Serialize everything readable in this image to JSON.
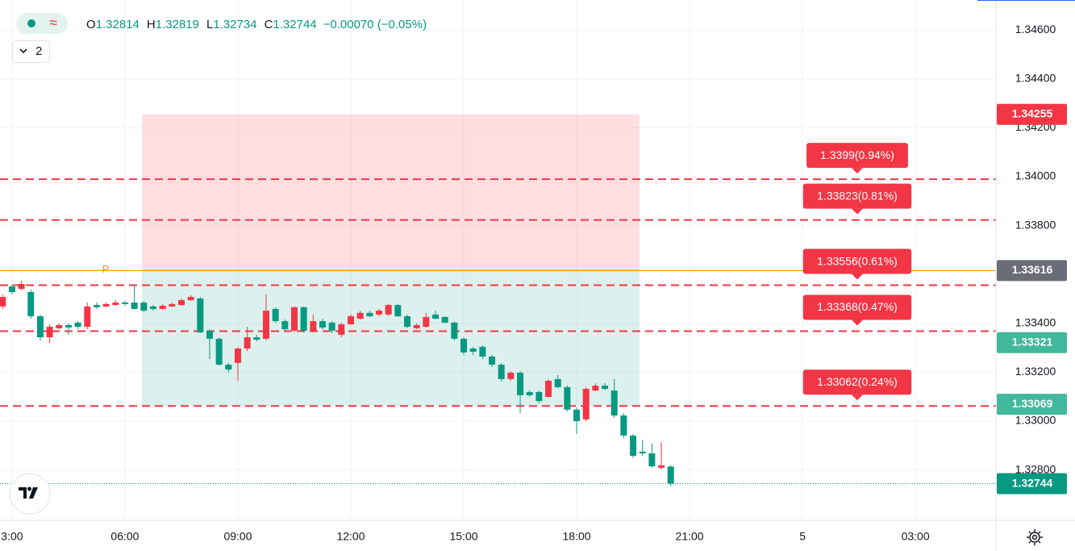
{
  "header": {
    "labels": [
      "O",
      "H",
      "L",
      "C"
    ],
    "change": "−0.00070 (−0.05%)",
    "indicators_count": 2
  },
  "chart_data": {
    "type": "candlestick",
    "up_color": "#f23645",
    "down_color": "#089981",
    "xlim": [
      2.68,
      29.14
    ],
    "ylim": [
      1.32594,
      1.34723
    ],
    "xticks": [
      {
        "value": 3,
        "label": "3:00"
      },
      {
        "value": 6,
        "label": "06:00"
      },
      {
        "value": 9,
        "label": "09:00"
      },
      {
        "value": 12,
        "label": "12:00"
      },
      {
        "value": 15,
        "label": "15:00"
      },
      {
        "value": 18,
        "label": "18:00"
      },
      {
        "value": 21,
        "label": "21:00"
      },
      {
        "value": 24,
        "label": "5"
      },
      {
        "value": 27,
        "label": "03:00"
      }
    ],
    "yticks": [
      {
        "value": 1.346,
        "label": "1.34600"
      },
      {
        "value": 1.344,
        "label": "1.34400"
      },
      {
        "value": 1.342,
        "label": "1.34200"
      },
      {
        "value": 1.34,
        "label": "1.34000"
      },
      {
        "value": 1.338,
        "label": "1.33800"
      },
      {
        "value": 1.334,
        "label": "1.33400"
      },
      {
        "value": 1.332,
        "label": "1.33200"
      },
      {
        "value": 1.33,
        "label": "1.33000"
      },
      {
        "value": 1.328,
        "label": "1.32800"
      }
    ],
    "grid": true,
    "x": [
      2.75,
      3,
      3.25,
      3.5,
      3.75,
      4,
      4.25,
      4.5,
      4.75,
      5,
      5.25,
      5.5,
      5.75,
      6,
      6.25,
      6.5,
      6.75,
      7,
      7.25,
      7.5,
      7.75,
      8,
      8.25,
      8.5,
      8.75,
      9,
      9.25,
      9.5,
      9.75,
      10,
      10.25,
      10.5,
      10.75,
      11,
      11.25,
      11.5,
      11.75,
      12,
      12.25,
      12.5,
      12.75,
      13,
      13.25,
      13.5,
      13.75,
      14,
      14.25,
      14.5,
      14.75,
      15,
      15.25,
      15.5,
      15.75,
      16,
      16.25,
      16.5,
      16.75,
      17,
      17.25,
      17.5,
      17.75,
      18,
      18.25,
      18.5,
      18.75,
      19,
      19.25,
      19.5,
      19.75,
      20,
      20.25,
      20.5
    ],
    "open": [
      1.33469,
      1.33551,
      1.33541,
      1.33528,
      1.33429,
      1.33343,
      1.3338,
      1.33393,
      1.33403,
      1.33386,
      1.33475,
      1.33469,
      1.33475,
      1.33485,
      1.33485,
      1.33485,
      1.33469,
      1.33459,
      1.33469,
      1.33475,
      1.33495,
      1.33502,
      1.3337,
      1.33337,
      1.33231,
      1.33238,
      1.33297,
      1.33343,
      1.33337,
      1.33459,
      1.33409,
      1.3337,
      1.33466,
      1.3337,
      1.33409,
      1.33403,
      1.33353,
      1.33396,
      1.33419,
      1.33443,
      1.33436,
      1.33436,
      1.33475,
      1.33429,
      1.3338,
      1.33386,
      1.33436,
      1.33426,
      1.33403,
      1.33337,
      1.33297,
      1.33304,
      1.33264,
      1.33231,
      1.33172,
      1.33198,
      1.33119,
      1.33119,
      1.33099,
      1.33172,
      1.33139,
      1.33047,
      1.33007,
      1.33125,
      1.33145,
      1.33125,
      1.33023,
      1.32941,
      1.32875,
      1.32868,
      1.32809,
      1.32814
    ],
    "high": [
      1.33518,
      1.33561,
      1.33574,
      1.33538,
      1.33436,
      1.33396,
      1.334,
      1.334,
      1.33409,
      1.33485,
      1.33485,
      1.33485,
      1.33495,
      1.33492,
      1.33558,
      1.33492,
      1.33475,
      1.33479,
      1.33485,
      1.33502,
      1.33515,
      1.33508,
      1.33376,
      1.33343,
      1.33238,
      1.33304,
      1.33386,
      1.33353,
      1.33518,
      1.33466,
      1.33416,
      1.33469,
      1.33469,
      1.33436,
      1.33419,
      1.33409,
      1.33403,
      1.33436,
      1.33452,
      1.33452,
      1.33459,
      1.33479,
      1.33479,
      1.33436,
      1.334,
      1.33443,
      1.33452,
      1.33429,
      1.33409,
      1.33343,
      1.33304,
      1.3331,
      1.33271,
      1.33238,
      1.33205,
      1.33205,
      1.33125,
      1.33125,
      1.33172,
      1.33188,
      1.33145,
      1.33057,
      1.33139,
      1.33155,
      1.33155,
      1.33172,
      1.33033,
      1.32947,
      1.32924,
      1.32908,
      1.32914,
      1.32819
    ],
    "low": [
      1.33459,
      1.33518,
      1.33535,
      1.33419,
      1.3333,
      1.3332,
      1.33376,
      1.33353,
      1.33376,
      1.33376,
      1.33459,
      1.33466,
      1.33472,
      1.33472,
      1.33456,
      1.33446,
      1.33452,
      1.33456,
      1.33466,
      1.33472,
      1.33492,
      1.3336,
      1.33254,
      1.33228,
      1.33198,
      1.33165,
      1.33287,
      1.33327,
      1.3333,
      1.33403,
      1.3337,
      1.33363,
      1.33363,
      1.33363,
      1.33376,
      1.3336,
      1.33343,
      1.33393,
      1.33416,
      1.33426,
      1.33429,
      1.33429,
      1.33426,
      1.3338,
      1.33376,
      1.33383,
      1.33416,
      1.334,
      1.3333,
      1.33271,
      1.33271,
      1.33254,
      1.33221,
      1.33162,
      1.33165,
      1.33033,
      1.33099,
      1.33073,
      1.33096,
      1.33135,
      1.3304,
      1.32947,
      1.33,
      1.33122,
      1.33125,
      1.33013,
      1.32931,
      1.32849,
      1.32858,
      1.32809,
      1.32802,
      1.32734
    ],
    "close": [
      1.33508,
      1.33528,
      1.33561,
      1.33429,
      1.33343,
      1.33386,
      1.33393,
      1.33383,
      1.33386,
      1.33469,
      1.33466,
      1.33479,
      1.33485,
      1.33479,
      1.33459,
      1.33452,
      1.33459,
      1.33472,
      1.33479,
      1.33495,
      1.33508,
      1.33363,
      1.33337,
      1.33231,
      1.33211,
      1.33297,
      1.33343,
      1.33333,
      1.33452,
      1.33409,
      1.33376,
      1.33466,
      1.3337,
      1.33409,
      1.33383,
      1.3337,
      1.33396,
      1.33429,
      1.33443,
      1.33429,
      1.33452,
      1.33475,
      1.33429,
      1.33386,
      1.33393,
      1.33426,
      1.33419,
      1.33403,
      1.33337,
      1.33281,
      1.33284,
      1.33264,
      1.33231,
      1.33172,
      1.33198,
      1.33106,
      1.33106,
      1.33082,
      1.33165,
      1.33139,
      1.33047,
      1.33,
      1.33132,
      1.33145,
      1.33132,
      1.33023,
      1.32941,
      1.32858,
      1.32868,
      1.32815,
      1.32819,
      1.32744
    ],
    "position": {
      "x": [
        6.45,
        19.67
      ],
      "stop": 1.34255,
      "entry": 1.33616,
      "target": 1.33062,
      "stop_color": "#f23645",
      "target_color": "#089981",
      "entry_label": "P",
      "entry_color": "#ff9800"
    },
    "lines": [
      {
        "value": 1.3399,
        "label": "1.3399(0.94%)"
      },
      {
        "value": 1.33823,
        "label": "1.33823(0.81%)"
      },
      {
        "value": 1.33556,
        "label": "1.33556(0.61%)"
      },
      {
        "value": 1.33368,
        "label": "1.33368(0.47%)"
      },
      {
        "value": 1.33062,
        "label": "1.33062(0.24%)"
      }
    ],
    "lines_color": "#f23645",
    "price_labels": [
      {
        "value": 1.34255,
        "color": "#f23645"
      },
      {
        "value": 1.33616,
        "color": "#6a6d78"
      },
      {
        "value": 1.33321,
        "color": "#42b89c"
      },
      {
        "value": 1.33069,
        "color": "#42b89c"
      },
      {
        "value": 1.32744,
        "color": "#089981"
      }
    ]
  }
}
